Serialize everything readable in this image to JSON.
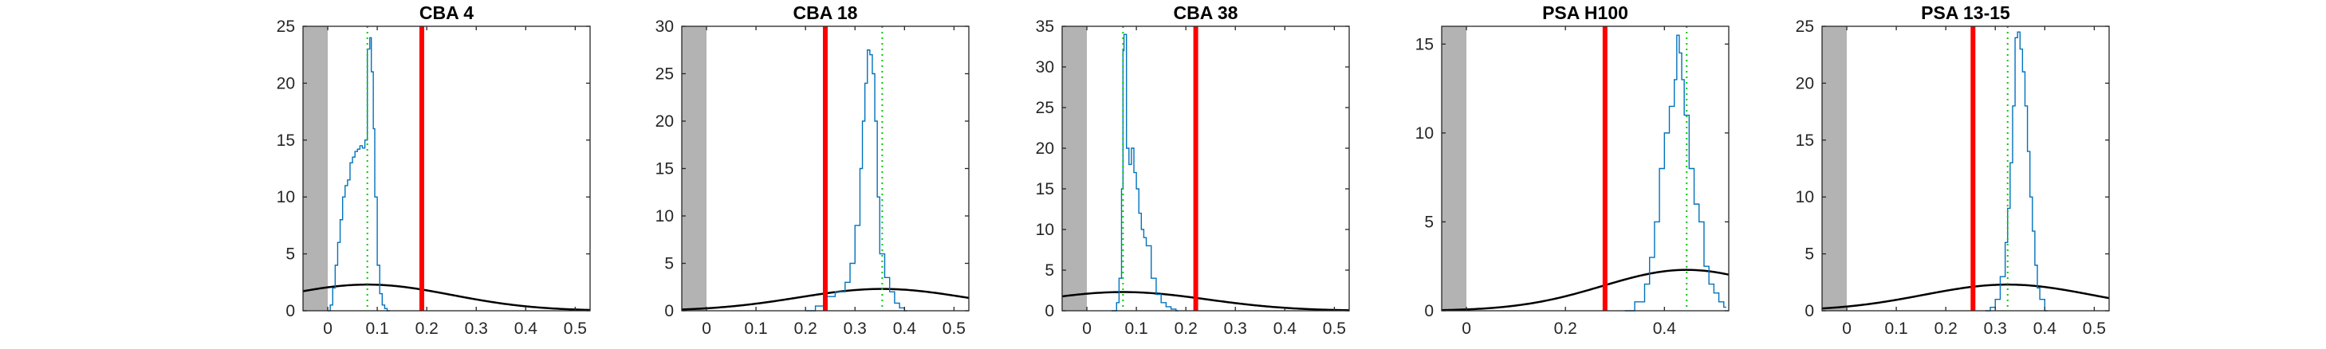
{
  "chart_data": [
    {
      "type": "line",
      "title": "CBA 4",
      "xlabel": "",
      "ylabel": "",
      "xlim": [
        -0.05,
        0.53
      ],
      "ylim": [
        0,
        25
      ],
      "xticks": [
        0,
        0.1,
        0.2,
        0.3,
        0.4,
        0.5
      ],
      "xtick_labels": [
        "0",
        "0.1",
        "0.2",
        "0.3",
        "0.4",
        "0.5"
      ],
      "yticks": [
        0,
        5,
        10,
        15,
        20,
        25
      ],
      "ytick_labels": [
        "0",
        "5",
        "10",
        "15",
        "20",
        "25"
      ],
      "shaded_region": [
        -0.05,
        0
      ],
      "shade_color": "#b3b3b3",
      "histogram_color": "#0072bd",
      "histogram": {
        "x": [
          0.0,
          0.005,
          0.01,
          0.015,
          0.02,
          0.025,
          0.03,
          0.035,
          0.04,
          0.045,
          0.05,
          0.055,
          0.06,
          0.065,
          0.07,
          0.075,
          0.08,
          0.085,
          0.088,
          0.092,
          0.095,
          0.1,
          0.105,
          0.11,
          0.115,
          0.12
        ],
        "y": [
          0,
          0.5,
          2,
          4,
          6,
          8,
          10,
          11,
          11.5,
          13,
          13.5,
          14,
          14.2,
          14.5,
          14.3,
          15,
          23,
          24,
          21,
          16,
          10,
          4,
          1.5,
          0.5,
          0.2,
          0
        ]
      },
      "red_line": {
        "x": 0.19,
        "color": "#ff0000"
      },
      "green_line": {
        "x": 0.08,
        "color": "#00cc00"
      },
      "gaussian": {
        "mean": 0.08,
        "sigma": 0.17,
        "peak": 2.3,
        "color": "#000000"
      }
    },
    {
      "type": "line",
      "title": "CBA 18",
      "xlabel": "",
      "ylabel": "",
      "xlim": [
        -0.05,
        0.53
      ],
      "ylim": [
        0,
        30
      ],
      "xticks": [
        0,
        0.1,
        0.2,
        0.3,
        0.4,
        0.5
      ],
      "xtick_labels": [
        "0",
        "0.1",
        "0.2",
        "0.3",
        "0.4",
        "0.5"
      ],
      "yticks": [
        0,
        5,
        10,
        15,
        20,
        25,
        30
      ],
      "ytick_labels": [
        "0",
        "5",
        "10",
        "15",
        "20",
        "25",
        "30"
      ],
      "shaded_region": [
        -0.05,
        0
      ],
      "shade_color": "#b3b3b3",
      "histogram_color": "#0072bd",
      "histogram": {
        "x": [
          0.2,
          0.22,
          0.24,
          0.26,
          0.28,
          0.29,
          0.3,
          0.31,
          0.315,
          0.32,
          0.325,
          0.33,
          0.335,
          0.34,
          0.345,
          0.35,
          0.36,
          0.37,
          0.38,
          0.39,
          0.4
        ],
        "y": [
          0,
          0.5,
          1.5,
          2,
          3,
          5,
          9,
          15,
          20,
          24,
          27.5,
          27,
          25,
          20,
          12,
          6,
          3.5,
          2,
          0.8,
          0.3,
          0
        ]
      },
      "red_line": {
        "x": 0.24,
        "color": "#ff0000"
      },
      "green_line": {
        "x": 0.355,
        "color": "#00cc00"
      },
      "gaussian": {
        "mean": 0.355,
        "sigma": 0.17,
        "peak": 2.3,
        "color": "#000000"
      }
    },
    {
      "type": "line",
      "title": "CBA 38",
      "xlabel": "",
      "ylabel": "",
      "xlim": [
        -0.05,
        0.53
      ],
      "ylim": [
        0,
        35
      ],
      "xticks": [
        0,
        0.1,
        0.2,
        0.3,
        0.4,
        0.5
      ],
      "xtick_labels": [
        "0",
        "0.1",
        "0.2",
        "0.3",
        "0.4",
        "0.5"
      ],
      "yticks": [
        0,
        5,
        10,
        15,
        20,
        25,
        30,
        35
      ],
      "ytick_labels": [
        "0",
        "5",
        "10",
        "15",
        "20",
        "25",
        "30",
        "35"
      ],
      "shaded_region": [
        -0.05,
        0
      ],
      "shade_color": "#b3b3b3",
      "histogram_color": "#0072bd",
      "histogram": {
        "x": [
          0.05,
          0.06,
          0.065,
          0.07,
          0.073,
          0.075,
          0.08,
          0.085,
          0.09,
          0.095,
          0.1,
          0.105,
          0.11,
          0.115,
          0.12,
          0.13,
          0.14,
          0.15,
          0.16,
          0.17,
          0.18
        ],
        "y": [
          0,
          1,
          4,
          15,
          32,
          34,
          20,
          18,
          20,
          17,
          15,
          12,
          10,
          9,
          8,
          4,
          2,
          1,
          0.5,
          0.2,
          0
        ]
      },
      "red_line": {
        "x": 0.22,
        "color": "#ff0000"
      },
      "green_line": {
        "x": 0.073,
        "color": "#00cc00"
      },
      "gaussian": {
        "mean": 0.073,
        "sigma": 0.17,
        "peak": 2.3,
        "color": "#000000"
      }
    },
    {
      "type": "line",
      "title": "PSA H100",
      "xlabel": "",
      "ylabel": "",
      "xlim": [
        -0.05,
        0.53
      ],
      "ylim": [
        0,
        16
      ],
      "xticks": [
        0,
        0.2,
        0.4
      ],
      "xtick_labels": [
        "0",
        "0.2",
        "0.4"
      ],
      "yticks": [
        0,
        5,
        10,
        15
      ],
      "ytick_labels": [
        "0",
        "5",
        "10",
        "15"
      ],
      "shaded_region": [
        -0.05,
        0
      ],
      "shade_color": "#b3b3b3",
      "histogram_color": "#0072bd",
      "histogram": {
        "x": [
          0.32,
          0.34,
          0.36,
          0.37,
          0.38,
          0.39,
          0.4,
          0.41,
          0.42,
          0.425,
          0.43,
          0.435,
          0.44,
          0.45,
          0.46,
          0.47,
          0.48,
          0.49,
          0.5,
          0.51,
          0.52
        ],
        "y": [
          0,
          0.5,
          1.5,
          3,
          5,
          8,
          10,
          11.5,
          13,
          15.5,
          14.5,
          13,
          11,
          8,
          6,
          5,
          2.5,
          1.5,
          1,
          0.5,
          0.2
        ]
      },
      "red_line": {
        "x": 0.28,
        "color": "#ff0000"
      },
      "green_line": {
        "x": 0.445,
        "color": "#00cc00"
      },
      "gaussian": {
        "mean": 0.445,
        "sigma": 0.17,
        "peak": 2.3,
        "color": "#000000"
      }
    },
    {
      "type": "line",
      "title": "PSA 13-15",
      "xlabel": "",
      "ylabel": "",
      "xlim": [
        -0.05,
        0.53
      ],
      "ylim": [
        0,
        25
      ],
      "xticks": [
        0,
        0.1,
        0.2,
        0.3,
        0.4,
        0.5
      ],
      "xtick_labels": [
        "0",
        "0.1",
        "0.2",
        "0.3",
        "0.4",
        "0.5"
      ],
      "yticks": [
        0,
        5,
        10,
        15,
        20,
        25
      ],
      "ytick_labels": [
        "0",
        "5",
        "10",
        "15",
        "20",
        "25"
      ],
      "shaded_region": [
        -0.05,
        0
      ],
      "shade_color": "#b3b3b3",
      "histogram_color": "#0072bd",
      "histogram": {
        "x": [
          0.28,
          0.29,
          0.3,
          0.31,
          0.32,
          0.325,
          0.33,
          0.335,
          0.34,
          0.345,
          0.35,
          0.355,
          0.36,
          0.365,
          0.37,
          0.375,
          0.38,
          0.385,
          0.39,
          0.4
        ],
        "y": [
          0,
          0.3,
          1,
          3,
          6,
          9,
          13,
          18,
          24,
          24.5,
          23,
          21,
          18,
          14,
          10,
          7,
          4,
          2,
          1,
          0
        ]
      },
      "red_line": {
        "x": 0.255,
        "color": "#ff0000"
      },
      "green_line": {
        "x": 0.325,
        "color": "#00cc00"
      },
      "gaussian": {
        "mean": 0.325,
        "sigma": 0.17,
        "peak": 2.3,
        "color": "#000000"
      }
    }
  ]
}
